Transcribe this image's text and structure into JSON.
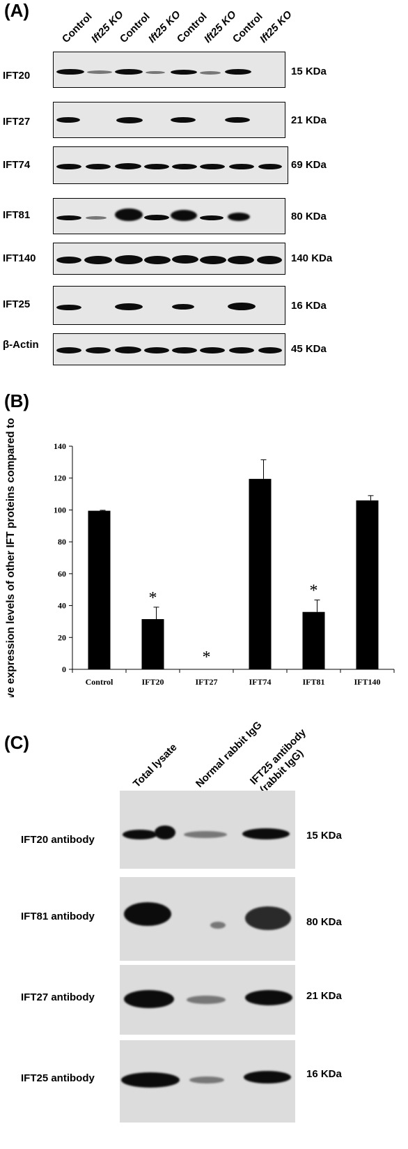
{
  "panelA": {
    "letter": "(A)",
    "lanes": [
      "Control",
      "Ift25 KO",
      "Control",
      "Ift25 KO",
      "Control",
      "Ift25 KO",
      "Control",
      "Ift25 KO"
    ],
    "blots": [
      {
        "label": "IFT20",
        "kda": "15 KDa"
      },
      {
        "label": "IFT27",
        "kda": "21 KDa"
      },
      {
        "label": "IFT74",
        "kda": "69 KDa"
      },
      {
        "label": "IFT81",
        "kda": "80 KDa"
      },
      {
        "label": "IFT140",
        "kda": "140 KDa"
      },
      {
        "label": "IFT25",
        "kda": "16 KDa"
      },
      {
        "label": "β-Actin",
        "kda": "45 KDa"
      }
    ]
  },
  "panelB": {
    "letter": "(B)",
    "chart_data": {
      "type": "bar",
      "categories": [
        "Control",
        "IFT20",
        "IFT27",
        "IFT74",
        "IFT81",
        "IFT140"
      ],
      "values": [
        99.5,
        31.5,
        0,
        119.5,
        36,
        106
      ],
      "errors": [
        0.3,
        7.5,
        0,
        12,
        7.5,
        3
      ],
      "significant": [
        false,
        true,
        true,
        false,
        true,
        false
      ],
      "significance_marker": "*",
      "ylabel": "Relative expression levels of other IFT proteins compared to the control",
      "ylim": [
        0,
        140
      ],
      "yticks": [
        0,
        20,
        40,
        60,
        80,
        100,
        120,
        140
      ],
      "colors": {
        "bar": "#000000"
      }
    }
  },
  "panelC": {
    "letter": "(C)",
    "lanes": [
      "Total lysate",
      "Normal rabbit IgG",
      "IFT25 antibody",
      "(rabbit IgG)"
    ],
    "blots": [
      {
        "label": "IFT20 antibody",
        "kda": "15 KDa"
      },
      {
        "label": "IFT81 antibody",
        "kda": "80 KDa"
      },
      {
        "label": "IFT27 antibody",
        "kda": "21 KDa"
      },
      {
        "label": "IFT25 antibody",
        "kda": "16 KDa"
      }
    ]
  }
}
